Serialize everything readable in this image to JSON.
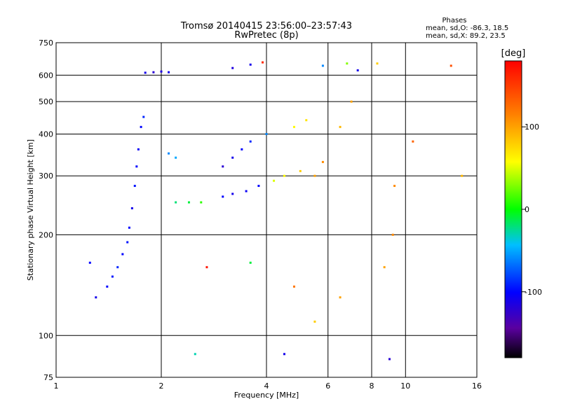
{
  "chart_data": {
    "type": "scatter",
    "title": "Tromsø 20140415 23:56:00–23:57:43",
    "subtitle": "RwPretec (8p)",
    "xlabel": "Frequency [MHz]",
    "ylabel": "Stationary phase Virtual Height [km]",
    "x_scale": "log",
    "y_scale": "log",
    "xlim": [
      1,
      16
    ],
    "ylim": [
      75,
      750
    ],
    "x_ticks": [
      1,
      2,
      4,
      6,
      8,
      10,
      16
    ],
    "x_tick_labels": [
      "1",
      "2",
      "4",
      "6",
      "8",
      "10",
      "16"
    ],
    "y_ticks": [
      75,
      100,
      200,
      300,
      400,
      500,
      600,
      750
    ],
    "y_tick_labels": [
      "75",
      "100",
      "200",
      "300",
      "400",
      "500",
      "600",
      "750"
    ],
    "grid": true,
    "info": {
      "heading": "Phases",
      "line_o": "mean, sd,O: -86.3, 18.5",
      "line_x": "mean, sd,X: 89.2, 23.5"
    },
    "colorbar": {
      "label": "[deg]",
      "range": [
        -180,
        180
      ],
      "ticks": [
        100,
        0,
        -100
      ],
      "tick_labels": [
        "100",
        "0",
        "-100"
      ]
    },
    "series": [
      {
        "points": [
          [
            1.4,
            140,
            -100
          ],
          [
            1.45,
            150,
            -95
          ],
          [
            1.5,
            160,
            -90
          ],
          [
            1.55,
            175,
            -100
          ],
          [
            1.6,
            190,
            -95
          ],
          [
            1.62,
            210,
            -100
          ],
          [
            1.65,
            240,
            -110
          ],
          [
            1.68,
            280,
            -95
          ],
          [
            1.7,
            320,
            -100
          ],
          [
            1.72,
            360,
            -105
          ],
          [
            1.75,
            420,
            -100
          ],
          [
            1.78,
            450,
            -90
          ],
          [
            1.8,
            610,
            -110
          ],
          [
            1.9,
            612,
            -120
          ],
          [
            2.0,
            615,
            -115
          ],
          [
            2.1,
            612,
            -110
          ],
          [
            2.2,
            250,
            -20
          ],
          [
            2.4,
            250,
            -10
          ],
          [
            2.6,
            250,
            10
          ],
          [
            2.1,
            350,
            -60
          ],
          [
            2.2,
            340,
            -50
          ],
          [
            3.0,
            260,
            -100
          ],
          [
            3.2,
            265,
            -110
          ],
          [
            3.5,
            270,
            -105
          ],
          [
            3.8,
            280,
            -100
          ],
          [
            4.2,
            290,
            50
          ],
          [
            4.5,
            300,
            60
          ],
          [
            5.0,
            310,
            80
          ],
          [
            5.5,
            300,
            100
          ],
          [
            5.8,
            330,
            110
          ],
          [
            6.5,
            420,
            90
          ],
          [
            7.0,
            500,
            100
          ],
          [
            3.2,
            630,
            -115
          ],
          [
            3.6,
            645,
            -110
          ],
          [
            3.9,
            655,
            160
          ],
          [
            3.0,
            320,
            -120
          ],
          [
            3.2,
            340,
            -110
          ],
          [
            3.4,
            360,
            -100
          ],
          [
            3.6,
            380,
            -90
          ],
          [
            4.0,
            400,
            -60
          ],
          [
            4.8,
            420,
            60
          ],
          [
            5.2,
            440,
            70
          ],
          [
            5.8,
            640,
            -60
          ],
          [
            6.8,
            650,
            30
          ],
          [
            7.3,
            620,
            -110
          ],
          [
            8.3,
            650,
            80
          ],
          [
            9.3,
            280,
            110
          ],
          [
            10.5,
            380,
            130
          ],
          [
            13.5,
            640,
            140
          ],
          [
            14.5,
            300,
            90
          ],
          [
            1.3,
            130,
            -110
          ],
          [
            1.25,
            165,
            -100
          ],
          [
            2.5,
            88,
            -30
          ],
          [
            4.5,
            88,
            -110
          ],
          [
            5.5,
            110,
            80
          ],
          [
            6.5,
            130,
            100
          ],
          [
            9.0,
            85,
            -120
          ],
          [
            2.7,
            160,
            170
          ],
          [
            3.6,
            165,
            -10
          ],
          [
            4.8,
            140,
            120
          ],
          [
            8.7,
            160,
            100
          ],
          [
            9.2,
            200,
            110
          ]
        ]
      }
    ]
  }
}
